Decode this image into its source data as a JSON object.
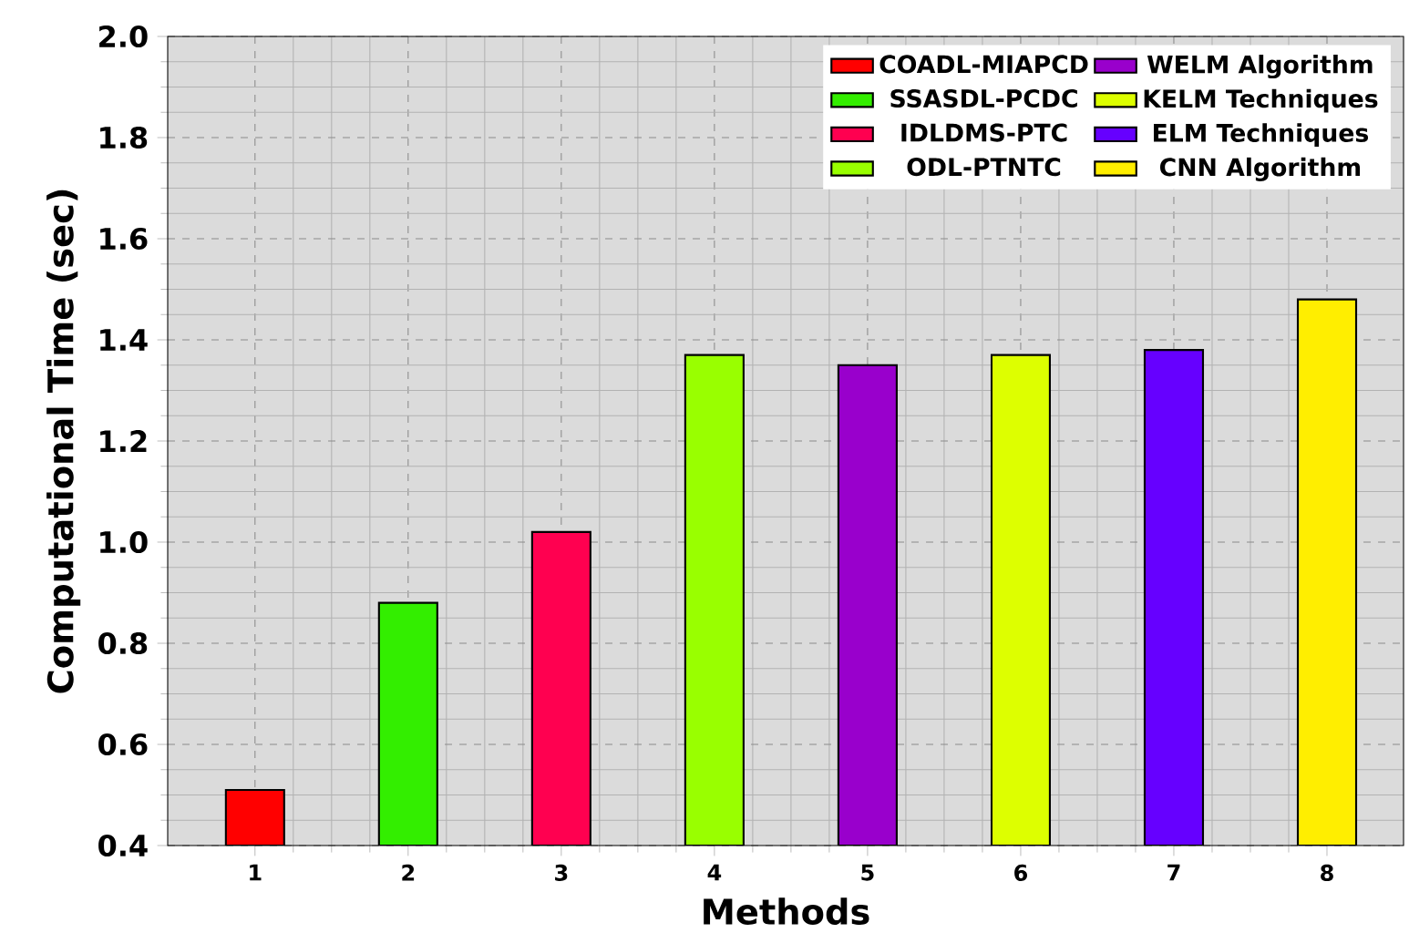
{
  "chart_data": {
    "type": "bar",
    "xlabel": "Methods",
    "ylabel": "Computational Time (sec)",
    "categories": [
      "1",
      "2",
      "3",
      "4",
      "5",
      "6",
      "7",
      "8"
    ],
    "series": [
      {
        "name": "COADL-MIAPCD",
        "color": "#ff0000",
        "values": [
          0.51,
          null,
          null,
          null,
          null,
          null,
          null,
          null
        ]
      },
      {
        "name": "SSASDL-PCDC",
        "color": "#33ee00",
        "values": [
          null,
          0.88,
          null,
          null,
          null,
          null,
          null,
          null
        ]
      },
      {
        "name": "IDLDMS-PTC",
        "color": "#ff0050",
        "values": [
          null,
          null,
          1.02,
          null,
          null,
          null,
          null,
          null
        ]
      },
      {
        "name": "ODL-PTNTC",
        "color": "#99ff00",
        "values": [
          null,
          null,
          null,
          1.37,
          null,
          null,
          null,
          null
        ]
      },
      {
        "name": "WELM Algorithm",
        "color": "#9900cc",
        "values": [
          null,
          null,
          null,
          null,
          1.35,
          null,
          null,
          null
        ]
      },
      {
        "name": "KELM Techniques",
        "color": "#ddff00",
        "values": [
          null,
          null,
          null,
          null,
          null,
          1.37,
          null,
          null
        ]
      },
      {
        "name": "ELM Techniques",
        "color": "#6600ff",
        "values": [
          null,
          null,
          null,
          null,
          null,
          null,
          1.38,
          null
        ]
      },
      {
        "name": "CNN Algorithm",
        "color": "#ffee00",
        "values": [
          null,
          null,
          null,
          null,
          null,
          null,
          null,
          1.48
        ]
      }
    ],
    "ylim": [
      0.4,
      2.0
    ],
    "yticks": [
      0.4,
      0.6,
      0.8,
      {
        "value": 1.0,
        "label": "1.0"
      },
      1.2,
      1.4,
      1.6,
      1.8,
      {
        "value": 2.0,
        "label": "2.0"
      }
    ],
    "grid": true,
    "legend": "top right"
  }
}
